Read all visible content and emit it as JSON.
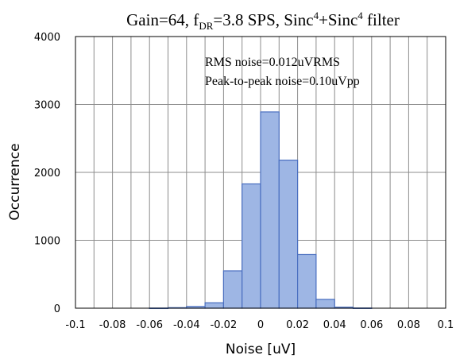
{
  "chart_data": {
    "type": "bar",
    "title": {
      "prefix": "Gain=64, f",
      "sub": "DR",
      "mid": "=3.8 SPS, Sinc",
      "sup1": "4",
      "plus": "+Sinc",
      "sup2": "4",
      "suffix": " filter"
    },
    "xlabel": "Noise [uV]",
    "ylabel": "Occurrence",
    "xlim": [
      -0.1,
      0.1
    ],
    "ylim": [
      0,
      4000
    ],
    "x_ticks": [
      -0.1,
      -0.08,
      -0.06,
      -0.04,
      -0.02,
      0,
      0.02,
      0.04,
      0.06,
      0.08,
      0.1
    ],
    "x_tick_labels": [
      "-0.1",
      "-0.08",
      "-0.06",
      "-0.04",
      "-0.02",
      "0",
      "0.02",
      "0.04",
      "0.06",
      "0.08",
      "0.1"
    ],
    "y_ticks": [
      0,
      1000,
      2000,
      3000,
      4000
    ],
    "y_tick_labels": [
      "0",
      "1000",
      "2000",
      "3000",
      "4000"
    ],
    "grid": true,
    "bin_width": 0.01,
    "bins": [
      {
        "start": -0.06,
        "value": 2
      },
      {
        "start": -0.05,
        "value": 8
      },
      {
        "start": -0.04,
        "value": 25
      },
      {
        "start": -0.03,
        "value": 80
      },
      {
        "start": -0.02,
        "value": 550
      },
      {
        "start": -0.01,
        "value": 1830
      },
      {
        "start": 0.0,
        "value": 2890
      },
      {
        "start": 0.01,
        "value": 2180
      },
      {
        "start": 0.02,
        "value": 790
      },
      {
        "start": 0.03,
        "value": 130
      },
      {
        "start": 0.04,
        "value": 15
      },
      {
        "start": 0.05,
        "value": 3
      }
    ],
    "annotations": [
      "RMS noise=0.012uVRMS",
      "Peak-to-peak noise=0.10uVpp"
    ],
    "colors": {
      "bar_fill": "#9eb6e4",
      "bar_stroke": "#4a6fc0",
      "grid": "#8c8c8c",
      "axis": "#000000"
    }
  }
}
